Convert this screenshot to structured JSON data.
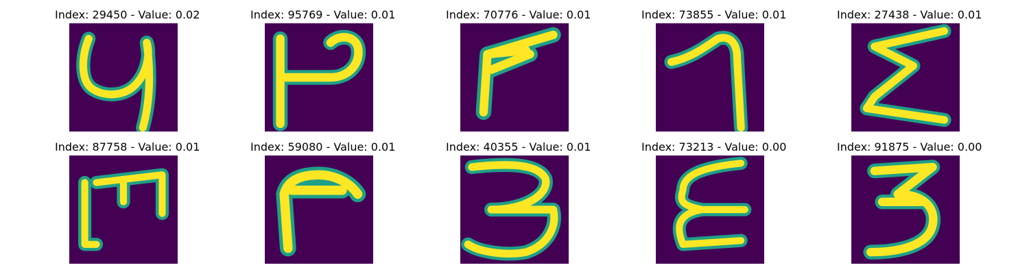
{
  "figure": {
    "colors": {
      "background": "#440154",
      "stroke_fill": "#fde725",
      "stroke_edge": "#1fa088"
    },
    "panels": [
      {
        "title": "Index: 29450 - Value: 0.02",
        "glyph": "handwritten-4-like-stroke"
      },
      {
        "title": "Index: 95769 - Value: 0.01",
        "glyph": "handwritten-P-like-stroke"
      },
      {
        "title": "Index: 70776 - Value: 0.01",
        "glyph": "handwritten-angle-stroke"
      },
      {
        "title": "Index: 73855 - Value: 0.01",
        "glyph": "handwritten-7-like-stroke"
      },
      {
        "title": "Index: 27438 - Value: 0.01",
        "glyph": "handwritten-sigma-like-stroke"
      },
      {
        "title": "Index: 87758 - Value: 0.01",
        "glyph": "handwritten-m-like-stroke"
      },
      {
        "title": "Index: 59080 - Value: 0.01",
        "glyph": "handwritten-gamma-like-stroke"
      },
      {
        "title": "Index: 40355 - Value: 0.01",
        "glyph": "handwritten-3-stroke"
      },
      {
        "title": "Index: 73213 - Value: 0.00",
        "glyph": "handwritten-epsilon-like-stroke"
      },
      {
        "title": "Index: 91875 - Value: 0.00",
        "glyph": "handwritten-3-stroke"
      }
    ]
  }
}
